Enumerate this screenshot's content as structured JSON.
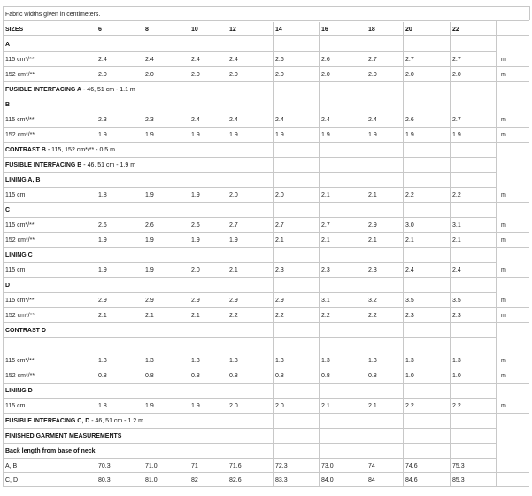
{
  "note": "Fabric widths given in centimeters.",
  "header": {
    "label": "SIZES",
    "sizes": [
      "6",
      "8",
      "10",
      "12",
      "14",
      "16",
      "18",
      "20",
      "22"
    ]
  },
  "unit": "m",
  "rows": [
    {
      "kind": "section",
      "text": "A"
    },
    {
      "kind": "data",
      "label": "115 cm*/**",
      "values": [
        "2.4",
        "2.4",
        "2.4",
        "2.4",
        "2.6",
        "2.6",
        "2.7",
        "2.7",
        "2.7"
      ]
    },
    {
      "kind": "data",
      "label": "152 cm*/**",
      "values": [
        "2.0",
        "2.0",
        "2.0",
        "2.0",
        "2.0",
        "2.0",
        "2.0",
        "2.0",
        "2.0"
      ]
    },
    {
      "kind": "section",
      "text": "FUSIBLE INTERFACING A",
      "detail": " - 46, 51 cm - 1.1 m"
    },
    {
      "kind": "section",
      "text": "B"
    },
    {
      "kind": "data",
      "label": "115 cm*/**",
      "values": [
        "2.3",
        "2.3",
        "2.4",
        "2.4",
        "2.4",
        "2.4",
        "2.4",
        "2.6",
        "2.7"
      ]
    },
    {
      "kind": "data",
      "label": "152 cm*/**",
      "values": [
        "1.9",
        "1.9",
        "1.9",
        "1.9",
        "1.9",
        "1.9",
        "1.9",
        "1.9",
        "1.9"
      ]
    },
    {
      "kind": "section",
      "text": "CONTRAST B",
      "detail": " - 115, 152 cm*/** - 0.5 m"
    },
    {
      "kind": "section",
      "text": "FUSIBLE INTERFACING B",
      "detail": " - 46, 51 cm - 1.9 m"
    },
    {
      "kind": "section",
      "text": "LINING A, B"
    },
    {
      "kind": "data",
      "label": "115 cm",
      "values": [
        "1.8",
        "1.9",
        "1.9",
        "2.0",
        "2.0",
        "2.1",
        "2.1",
        "2.2",
        "2.2"
      ]
    },
    {
      "kind": "section",
      "text": "C"
    },
    {
      "kind": "data",
      "label": "115 cm*/**",
      "values": [
        "2.6",
        "2.6",
        "2.6",
        "2.7",
        "2.7",
        "2.7",
        "2.9",
        "3.0",
        "3.1"
      ]
    },
    {
      "kind": "data",
      "label": "152 cm*/**",
      "values": [
        "1.9",
        "1.9",
        "1.9",
        "1.9",
        "2.1",
        "2.1",
        "2.1",
        "2.1",
        "2.1"
      ]
    },
    {
      "kind": "section",
      "text": "LINING C"
    },
    {
      "kind": "data",
      "label": "115 cm",
      "values": [
        "1.9",
        "1.9",
        "2.0",
        "2.1",
        "2.3",
        "2.3",
        "2.3",
        "2.4",
        "2.4"
      ]
    },
    {
      "kind": "section",
      "text": "D"
    },
    {
      "kind": "data",
      "label": "115 cm*/**",
      "values": [
        "2.9",
        "2.9",
        "2.9",
        "2.9",
        "2.9",
        "3.1",
        "3.2",
        "3.5",
        "3.5"
      ]
    },
    {
      "kind": "data",
      "label": "152 cm*/**",
      "values": [
        "2.1",
        "2.1",
        "2.1",
        "2.2",
        "2.2",
        "2.2",
        "2.2",
        "2.3",
        "2.3"
      ]
    },
    {
      "kind": "section",
      "text": "CONTRAST D"
    },
    {
      "kind": "blank"
    },
    {
      "kind": "data",
      "label": "115 cm*/**",
      "values": [
        "1.3",
        "1.3",
        "1.3",
        "1.3",
        "1.3",
        "1.3",
        "1.3",
        "1.3",
        "1.3"
      ]
    },
    {
      "kind": "data",
      "label": "152 cm*/**",
      "values": [
        "0.8",
        "0.8",
        "0.8",
        "0.8",
        "0.8",
        "0.8",
        "0.8",
        "1.0",
        "1.0"
      ]
    },
    {
      "kind": "section",
      "text": "LINING D"
    },
    {
      "kind": "data",
      "label": "115 cm",
      "values": [
        "1.8",
        "1.9",
        "1.9",
        "2.0",
        "2.0",
        "2.1",
        "2.1",
        "2.2",
        "2.2"
      ]
    },
    {
      "kind": "section",
      "text": "FUSIBLE INTERFACING C, D",
      "detail": " - 46, 51 cm - 1.2 m"
    },
    {
      "kind": "section",
      "text": "FINISHED GARMENT MEASUREMENTS"
    },
    {
      "kind": "section",
      "text": "Back length from base of neck"
    },
    {
      "kind": "measure",
      "label": "A, B",
      "values": [
        "70.3",
        "71.0",
        "71",
        "71.6",
        "72.3",
        "73.0",
        "74",
        "74.6",
        "75.3"
      ]
    },
    {
      "kind": "measure",
      "label": "C, D",
      "values": [
        "80.3",
        "81.0",
        "82",
        "82.6",
        "83.3",
        "84.0",
        "84",
        "84.6",
        "85.3"
      ]
    }
  ]
}
